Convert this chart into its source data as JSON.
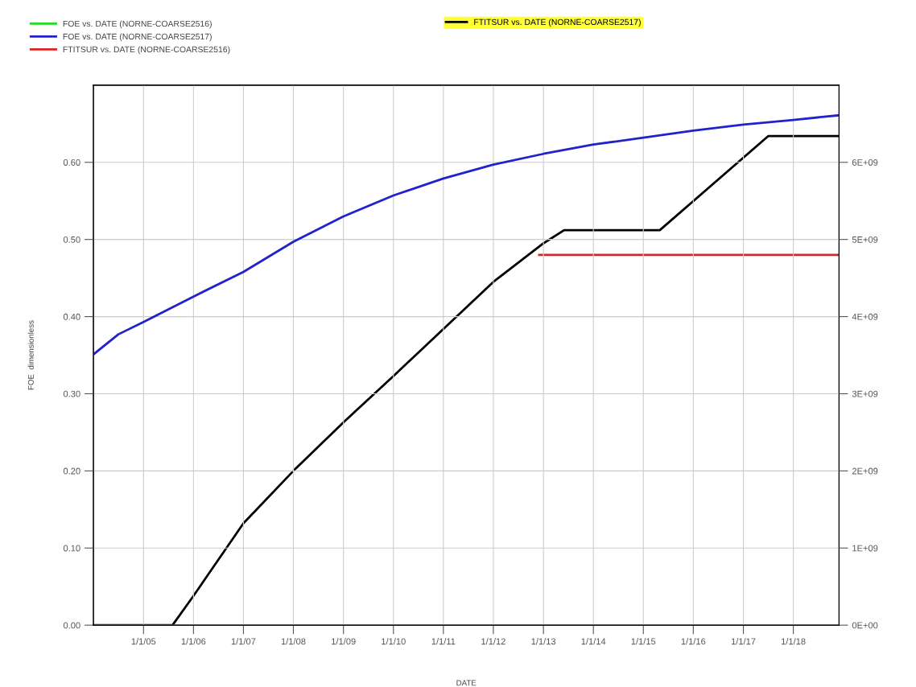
{
  "chart_data": {
    "type": "line",
    "xlabel": "DATE",
    "ylabel": "FOE  dimensionless",
    "xlim": [
      "2004-01-01",
      "2018-12-01"
    ],
    "xticks": [
      {
        "value": "2005-01-01",
        "label": "1/1/05"
      },
      {
        "value": "2006-01-01",
        "label": "1/1/06"
      },
      {
        "value": "2007-01-01",
        "label": "1/1/07"
      },
      {
        "value": "2008-01-01",
        "label": "1/1/08"
      },
      {
        "value": "2009-01-01",
        "label": "1/1/09"
      },
      {
        "value": "2010-01-01",
        "label": "1/1/10"
      },
      {
        "value": "2011-01-01",
        "label": "1/1/11"
      },
      {
        "value": "2012-01-01",
        "label": "1/1/12"
      },
      {
        "value": "2013-01-01",
        "label": "1/1/13"
      },
      {
        "value": "2014-01-01",
        "label": "1/1/14"
      },
      {
        "value": "2015-01-01",
        "label": "1/1/15"
      },
      {
        "value": "2016-01-01",
        "label": "1/1/16"
      },
      {
        "value": "2017-01-01",
        "label": "1/1/17"
      },
      {
        "value": "2018-01-01",
        "label": "1/1/18"
      }
    ],
    "ylim": [
      0,
      0.7
    ],
    "yticks": [
      {
        "value": 0,
        "label": "0.00"
      },
      {
        "value": 0.1,
        "label": "0.10"
      },
      {
        "value": 0.2,
        "label": "0.20"
      },
      {
        "value": 0.3,
        "label": "0.30"
      },
      {
        "value": 0.4,
        "label": "0.40"
      },
      {
        "value": 0.5,
        "label": "0.50"
      },
      {
        "value": 0.6,
        "label": "0.60"
      }
    ],
    "y2lim": [
      0,
      7000000000
    ],
    "y2ticks": [
      {
        "value": 0,
        "label": "0E+00"
      },
      {
        "value": 1000000000,
        "label": "1E+09"
      },
      {
        "value": 2000000000,
        "label": "2E+09"
      },
      {
        "value": 3000000000,
        "label": "3E+09"
      },
      {
        "value": 4000000000,
        "label": "4E+09"
      },
      {
        "value": 5000000000,
        "label": "5E+09"
      },
      {
        "value": 6000000000,
        "label": "6E+09"
      }
    ],
    "grid": true,
    "legend": "top left",
    "marker": "none",
    "line_style": "solid",
    "series": [
      {
        "name": "FOE vs. DATE (NORNE-COARSE2516)",
        "color": "#22dd22"
      },
      {
        "name": "FOE vs. DATE (NORNE-COARSE2517)",
        "color": "#2222cc",
        "x": [
          "2004-01-01",
          "2004-07-01",
          "2005-01-01",
          "2006-01-01",
          "2007-01-01",
          "2008-01-01",
          "2009-01-01",
          "2010-01-01",
          "2011-01-01",
          "2012-01-01",
          "2013-01-01",
          "2014-01-01",
          "2015-01-01",
          "2016-01-01",
          "2017-01-01",
          "2018-01-01",
          "2018-12-01"
        ],
        "values": [
          0.351,
          0.377,
          0.393,
          0.426,
          0.458,
          0.497,
          0.53,
          0.557,
          0.579,
          0.597,
          0.611,
          0.623,
          0.632,
          0.641,
          0.649,
          0.655,
          0.661
        ]
      },
      {
        "name": "FTITSUR vs. DATE (NORNE-COARSE2516)",
        "color": "#dd2222",
        "axis": "y2",
        "x": [
          "2012-12-01",
          "2018-12-01"
        ],
        "values": [
          4800000000,
          4800000000
        ]
      },
      {
        "name": "FTITSUR vs. DATE (NORNE-COARSE2517)",
        "color": "#000000",
        "axis": "y2",
        "x": [
          "2004-01-01",
          "2005-08-01",
          "2006-01-01",
          "2007-01-01",
          "2008-01-01",
          "2009-01-01",
          "2010-01-01",
          "2011-01-01",
          "2012-01-01",
          "2013-01-01",
          "2013-06-01",
          "2015-05-01",
          "2017-07-01",
          "2018-12-01"
        ],
        "values": [
          0,
          0,
          380000000,
          1320000000,
          2000000000,
          2630000000,
          3230000000,
          3840000000,
          4450000000,
          4950000000,
          5120000000,
          5120000000,
          6340000000,
          6340000000
        ]
      }
    ]
  }
}
